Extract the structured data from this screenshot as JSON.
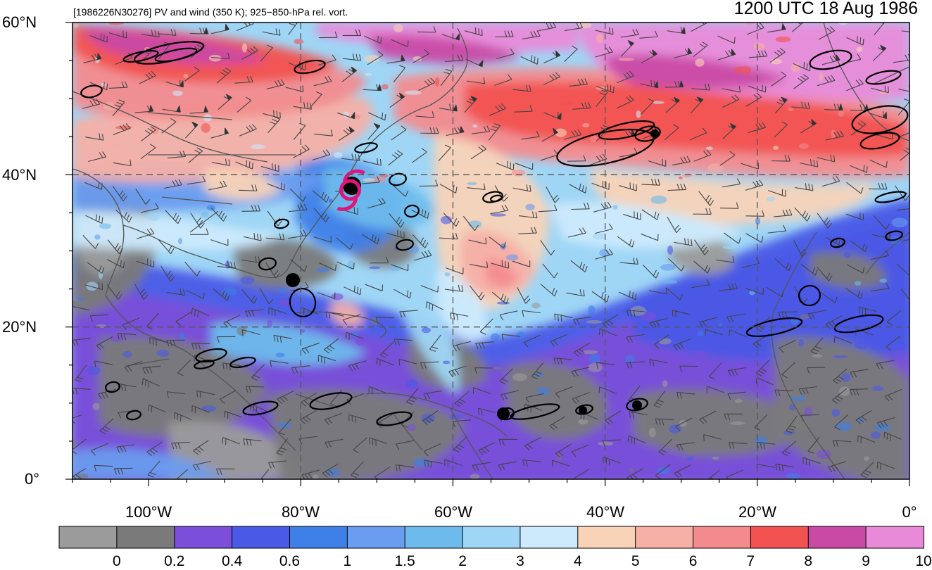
{
  "header": {
    "storm_label": "[1986226N30276] PV and wind (350 K); 925−850-hPa rel. vort.",
    "valid_time": "1200 UTC 18 Aug 1986"
  },
  "axes": {
    "lat_labels": [
      "60°N",
      "40°N",
      "20°N",
      "0°"
    ],
    "lon_labels": [
      "100°W",
      "80°W",
      "60°W",
      "40°W",
      "20°W",
      "0°"
    ]
  },
  "colorbar": {
    "levels": [
      "0",
      "0.2",
      "0.4",
      "0.6",
      "1",
      "1.5",
      "2",
      "3",
      "4",
      "5",
      "6",
      "7",
      "8",
      "9",
      "10"
    ],
    "colors": [
      "#9b9b9b",
      "#7a7a7a",
      "#7b4fd9",
      "#4a5ae6",
      "#3f7fe8",
      "#6a9cef",
      "#6dbbec",
      "#9fd6f6",
      "#cdeafc",
      "#f8d3b8",
      "#f6b0a6",
      "#f38b8e",
      "#f25250",
      "#c94aa5",
      "#e98ad8"
    ]
  },
  "map_extent": {
    "lon_min": -110,
    "lon_max": 0,
    "lat_min": 0,
    "lat_max": 60
  },
  "storm_symbol": {
    "color": "#e0157a",
    "lat": 38,
    "lon": -73.5
  }
}
